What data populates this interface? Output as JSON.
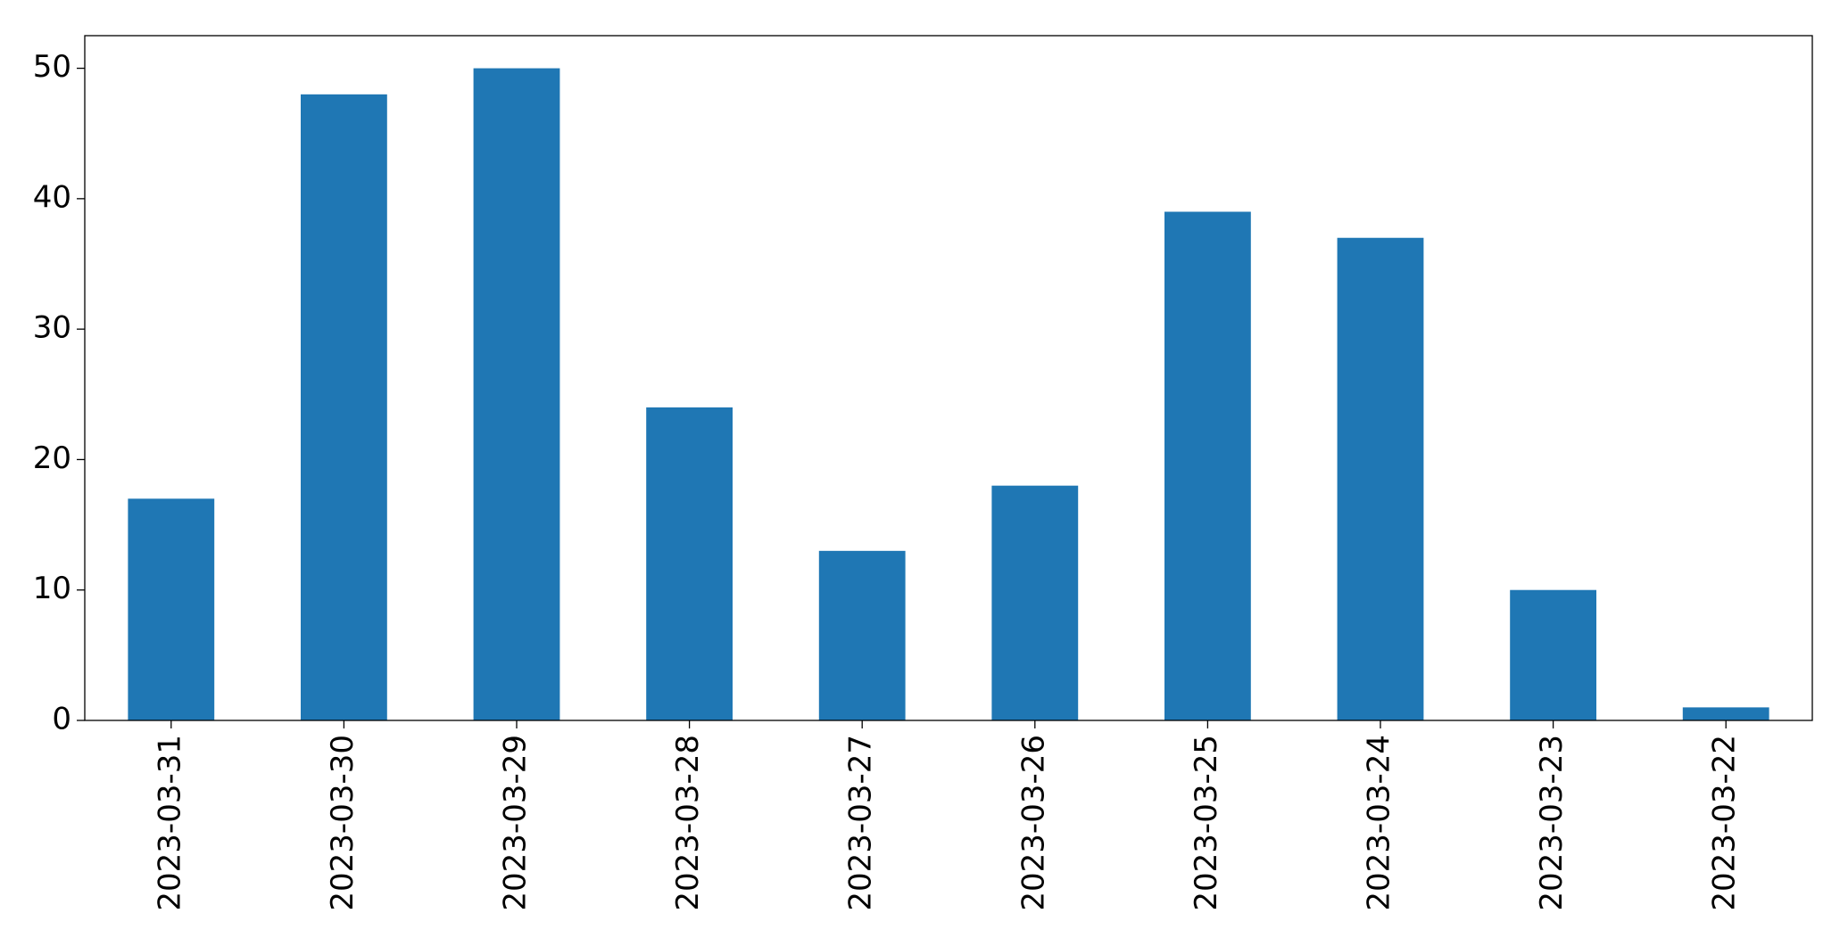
{
  "chart_data": {
    "type": "bar",
    "categories": [
      "2023-03-31",
      "2023-03-30",
      "2023-03-29",
      "2023-03-28",
      "2023-03-27",
      "2023-03-26",
      "2023-03-25",
      "2023-03-24",
      "2023-03-23",
      "2023-03-22"
    ],
    "values": [
      17,
      48,
      50,
      24,
      13,
      18,
      39,
      37,
      10,
      1
    ],
    "color": "#1f77b4",
    "ylim": [
      0,
      52.5
    ],
    "yticks": [
      0,
      10,
      20,
      30,
      40,
      50
    ],
    "grid": false
  }
}
